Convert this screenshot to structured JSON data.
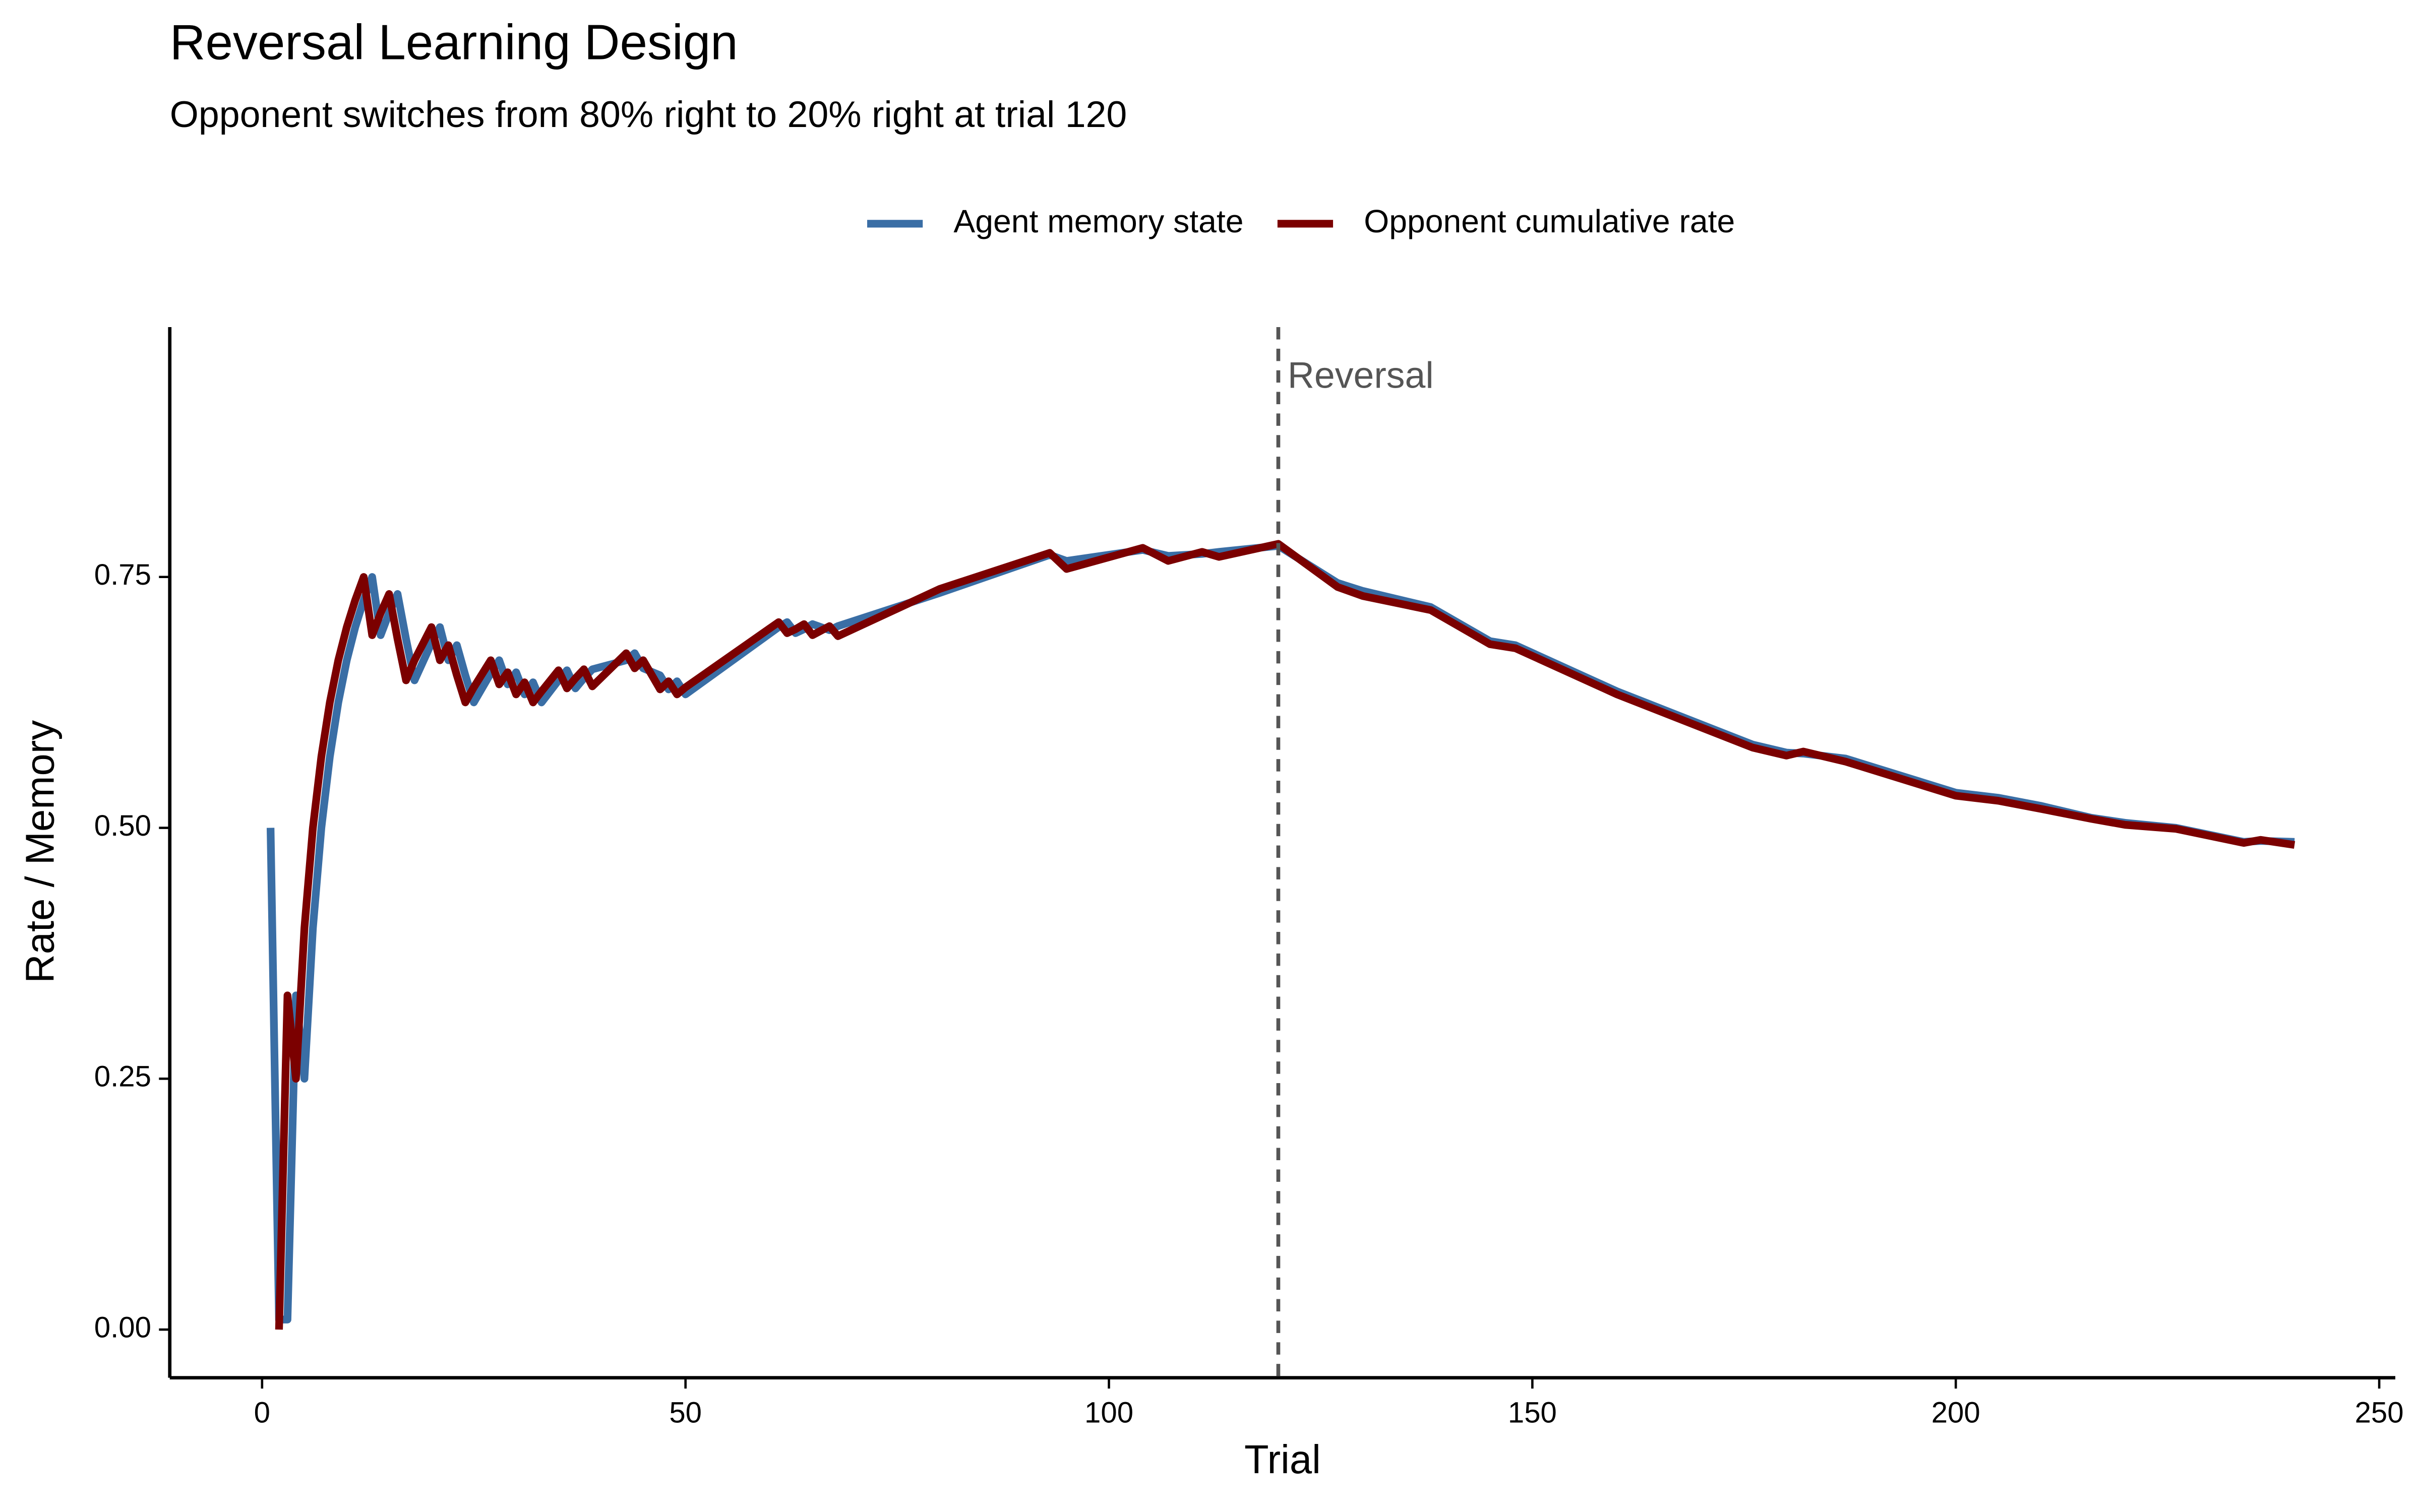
{
  "chart_data": {
    "type": "line",
    "title": "Reversal Learning Design",
    "subtitle": "Opponent switches from 80% right to 20% right at trial 120",
    "xlabel": "Trial",
    "ylabel": "Rate / Memory",
    "x": [
      1,
      2,
      3,
      4,
      5,
      6,
      7,
      8,
      9,
      10,
      11,
      12,
      13,
      14,
      15,
      16,
      17,
      18,
      20,
      21,
      22,
      23,
      24,
      25,
      27,
      28,
      29,
      30,
      31,
      32,
      33,
      35,
      36,
      37,
      38,
      39,
      43,
      44,
      45,
      47,
      48,
      49,
      50,
      61,
      62,
      63,
      64,
      65,
      67,
      68,
      80,
      93,
      95,
      104,
      107,
      111,
      113,
      120,
      127,
      130,
      134,
      138,
      145,
      148,
      160,
      176,
      180,
      182,
      187,
      200,
      205,
      210,
      216,
      220,
      226,
      234,
      236,
      240
    ],
    "series": [
      {
        "name": "Agent memory state",
        "color": "#3a6ea5",
        "values": [
          0.5,
          0.01,
          0.01,
          0.333,
          0.25,
          0.4,
          0.5,
          0.571,
          0.625,
          0.667,
          0.7,
          0.727,
          0.75,
          0.692,
          0.714,
          0.733,
          0.688,
          0.647,
          0.684,
          0.7,
          0.667,
          0.682,
          0.652,
          0.625,
          0.654,
          0.667,
          0.643,
          0.655,
          0.633,
          0.645,
          0.625,
          0.647,
          0.657,
          0.639,
          0.649,
          0.658,
          0.667,
          0.674,
          0.659,
          0.652,
          0.638,
          0.646,
          0.633,
          0.7,
          0.705,
          0.694,
          0.698,
          0.703,
          0.697,
          0.701,
          0.734,
          0.772,
          0.766,
          0.777,
          0.771,
          0.773,
          0.775,
          0.781,
          0.744,
          0.736,
          0.728,
          0.72,
          0.686,
          0.682,
          0.636,
          0.583,
          0.575,
          0.574,
          0.569,
          0.535,
          0.53,
          0.522,
          0.51,
          0.505,
          0.5,
          0.486,
          0.487,
          0.486
        ]
      },
      {
        "name": "Opponent cumulative rate",
        "color": "#7b0000",
        "values": [
          null,
          0,
          0.333,
          0.25,
          0.4,
          0.5,
          0.571,
          0.625,
          0.667,
          0.7,
          0.727,
          0.75,
          0.692,
          0.714,
          0.733,
          0.688,
          0.647,
          0.667,
          0.7,
          0.667,
          0.682,
          0.652,
          0.625,
          0.64,
          0.667,
          0.643,
          0.655,
          0.633,
          0.645,
          0.625,
          0.636,
          0.657,
          0.639,
          0.649,
          0.658,
          0.641,
          0.674,
          0.659,
          0.667,
          0.638,
          0.646,
          0.633,
          0.64,
          0.705,
          0.694,
          0.698,
          0.703,
          0.692,
          0.701,
          0.691,
          0.738,
          0.774,
          0.758,
          0.779,
          0.766,
          0.775,
          0.77,
          0.783,
          0.74,
          0.731,
          0.724,
          0.717,
          0.683,
          0.679,
          0.633,
          0.58,
          0.572,
          0.576,
          0.566,
          0.532,
          0.527,
          0.519,
          0.509,
          0.503,
          0.499,
          0.485,
          0.488,
          0.483
        ]
      }
    ],
    "xlim": [
      -10.9,
      251.9
    ],
    "xticks": [
      0,
      50,
      100,
      150,
      200,
      250
    ],
    "ylim": [
      -0.048,
      0.999
    ],
    "yticks": [
      {
        "value": 0,
        "label": "0.00"
      },
      {
        "value": 0.25,
        "label": "0.25"
      },
      {
        "value": 0.5,
        "label": "0.50"
      },
      {
        "value": 0.75,
        "label": "0.75"
      }
    ],
    "vline": {
      "x": 120,
      "label": "Reversal",
      "color": "#555555"
    },
    "legend": "top"
  }
}
